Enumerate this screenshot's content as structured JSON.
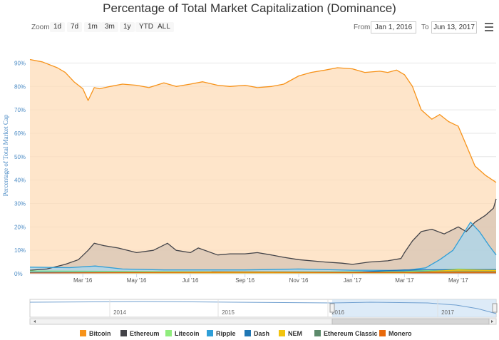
{
  "chart_data": {
    "type": "area",
    "title": "Percentage of Total Market Capitalization (Dominance)",
    "ylabel": "Percentage of Total Market Cap",
    "ylim": [
      0,
      95
    ],
    "yticks": [
      "0%",
      "10%",
      "20%",
      "30%",
      "40%",
      "50%",
      "60%",
      "70%",
      "80%",
      "90%"
    ],
    "x_range": [
      "2016-01-01",
      "2017-06-13"
    ],
    "xticks": [
      {
        "label": "Mar '16",
        "date": "2016-03-01"
      },
      {
        "label": "May '16",
        "date": "2016-05-01"
      },
      {
        "label": "Jul '16",
        "date": "2016-07-01"
      },
      {
        "label": "Sep '16",
        "date": "2016-09-01"
      },
      {
        "label": "Nov '16",
        "date": "2016-11-01"
      },
      {
        "label": "Jan '17",
        "date": "2017-01-01"
      },
      {
        "label": "Mar '17",
        "date": "2017-03-01"
      },
      {
        "label": "May '17",
        "date": "2017-05-01"
      }
    ],
    "grid": true,
    "legend_position": "bottom",
    "series": [
      {
        "name": "Bitcoin",
        "color": "#f7931a",
        "fill": "#fddcb8",
        "x": [
          "2016-01-01",
          "2016-01-15",
          "2016-02-01",
          "2016-02-10",
          "2016-02-20",
          "2016-03-01",
          "2016-03-07",
          "2016-03-14",
          "2016-03-20",
          "2016-04-01",
          "2016-04-15",
          "2016-05-01",
          "2016-05-15",
          "2016-06-01",
          "2016-06-15",
          "2016-07-01",
          "2016-07-15",
          "2016-08-01",
          "2016-08-15",
          "2016-09-01",
          "2016-09-15",
          "2016-10-01",
          "2016-10-15",
          "2016-11-01",
          "2016-11-15",
          "2016-12-01",
          "2016-12-15",
          "2017-01-01",
          "2017-01-15",
          "2017-02-01",
          "2017-02-10",
          "2017-02-20",
          "2017-03-01",
          "2017-03-10",
          "2017-03-20",
          "2017-04-01",
          "2017-04-10",
          "2017-04-20",
          "2017-05-01",
          "2017-05-10",
          "2017-05-20",
          "2017-06-01",
          "2017-06-13"
        ],
        "y": [
          91.5,
          90.5,
          88,
          86,
          82,
          79,
          74,
          79.5,
          79,
          80,
          81,
          80.5,
          79.5,
          81.5,
          80,
          81,
          82,
          80.5,
          80,
          80.5,
          79.5,
          80,
          81,
          84.5,
          86,
          87,
          88,
          87.5,
          86,
          86.5,
          86,
          87,
          85,
          80,
          70,
          66,
          68,
          65,
          63,
          55,
          46,
          42,
          39
        ]
      },
      {
        "name": "Ethereum",
        "color": "#434348",
        "fill": "#d7c4b4",
        "x": [
          "2016-01-01",
          "2016-01-20",
          "2016-02-10",
          "2016-02-25",
          "2016-03-07",
          "2016-03-14",
          "2016-03-25",
          "2016-04-10",
          "2016-05-01",
          "2016-05-20",
          "2016-06-05",
          "2016-06-15",
          "2016-07-01",
          "2016-07-10",
          "2016-08-01",
          "2016-08-15",
          "2016-09-01",
          "2016-09-15",
          "2016-10-01",
          "2016-10-15",
          "2016-11-01",
          "2016-12-01",
          "2016-12-20",
          "2017-01-01",
          "2017-01-20",
          "2017-02-10",
          "2017-02-25",
          "2017-03-01",
          "2017-03-10",
          "2017-03-20",
          "2017-04-01",
          "2017-04-15",
          "2017-05-01",
          "2017-05-10",
          "2017-05-20",
          "2017-06-01",
          "2017-06-10",
          "2017-06-13"
        ],
        "y": [
          1.5,
          2,
          4,
          6,
          10,
          13,
          12,
          11,
          9,
          10,
          13,
          10,
          9,
          11,
          8,
          8.5,
          8.5,
          9,
          8,
          7,
          6,
          5,
          4.5,
          4,
          5,
          5.5,
          6.5,
          9,
          14,
          18,
          19,
          17,
          20,
          18,
          22,
          25,
          28,
          32
        ]
      },
      {
        "name": "Litecoin",
        "color": "#90ed7d",
        "fill": "#d9d9dc",
        "x": [
          "2016-01-01",
          "2016-06-01",
          "2016-12-01",
          "2017-03-01",
          "2017-05-01",
          "2017-06-13"
        ],
        "y": [
          1.2,
          0.9,
          0.8,
          0.9,
          2.0,
          1.6
        ]
      },
      {
        "name": "Ripple",
        "color": "#2f9fd8",
        "fill": "#a8d6ee",
        "x": [
          "2016-01-01",
          "2016-02-15",
          "2016-03-15",
          "2016-04-15",
          "2016-06-01",
          "2016-09-01",
          "2016-11-01",
          "2017-01-01",
          "2017-03-01",
          "2017-03-25",
          "2017-04-10",
          "2017-04-25",
          "2017-05-05",
          "2017-05-15",
          "2017-05-25",
          "2017-06-05",
          "2017-06-13"
        ],
        "y": [
          2.8,
          2.6,
          3.3,
          2.0,
          1.6,
          1.6,
          2.0,
          1.5,
          1.4,
          2.5,
          6.0,
          10,
          16,
          22,
          18,
          12,
          8
        ]
      },
      {
        "name": "Dash",
        "color": "#1f77b4",
        "fill": "#1f77b4",
        "x": [
          "2016-01-01",
          "2016-06-01",
          "2017-01-01",
          "2017-03-01",
          "2017-06-13"
        ],
        "y": [
          0.6,
          0.6,
          0.6,
          1.6,
          1.8
        ]
      },
      {
        "name": "NEM",
        "color": "#f2c40f",
        "fill": "#f2c40f",
        "x": [
          "2016-01-01",
          "2017-03-01",
          "2017-05-01",
          "2017-06-13"
        ],
        "y": [
          0.2,
          0.3,
          1.6,
          1.4
        ]
      },
      {
        "name": "Ethereum Classic",
        "color": "#5c8a6b",
        "fill": "#5c8a6b",
        "x": [
          "2016-07-25",
          "2016-09-01",
          "2017-01-01",
          "2017-06-13"
        ],
        "y": [
          0.8,
          0.7,
          0.6,
          0.8
        ]
      },
      {
        "name": "Monero",
        "color": "#e8690b",
        "fill": "#e8690b",
        "x": [
          "2016-01-01",
          "2016-09-01",
          "2017-01-01",
          "2017-06-13"
        ],
        "y": [
          0.3,
          0.7,
          0.5,
          0.6
        ]
      }
    ],
    "navigator": {
      "years": [
        "2014",
        "2015",
        "2016",
        "2017"
      ]
    }
  },
  "toolbar": {
    "zoom_label": "Zoom",
    "zoom_buttons": [
      "1d",
      "7d",
      "1m",
      "3m",
      "1y",
      "YTD",
      "ALL"
    ],
    "from_label": "From",
    "from_value": "Jan 1, 2016",
    "to_label": "To",
    "to_value": "Jun 13, 2017",
    "menu_icon": "hamburger-menu-icon"
  }
}
